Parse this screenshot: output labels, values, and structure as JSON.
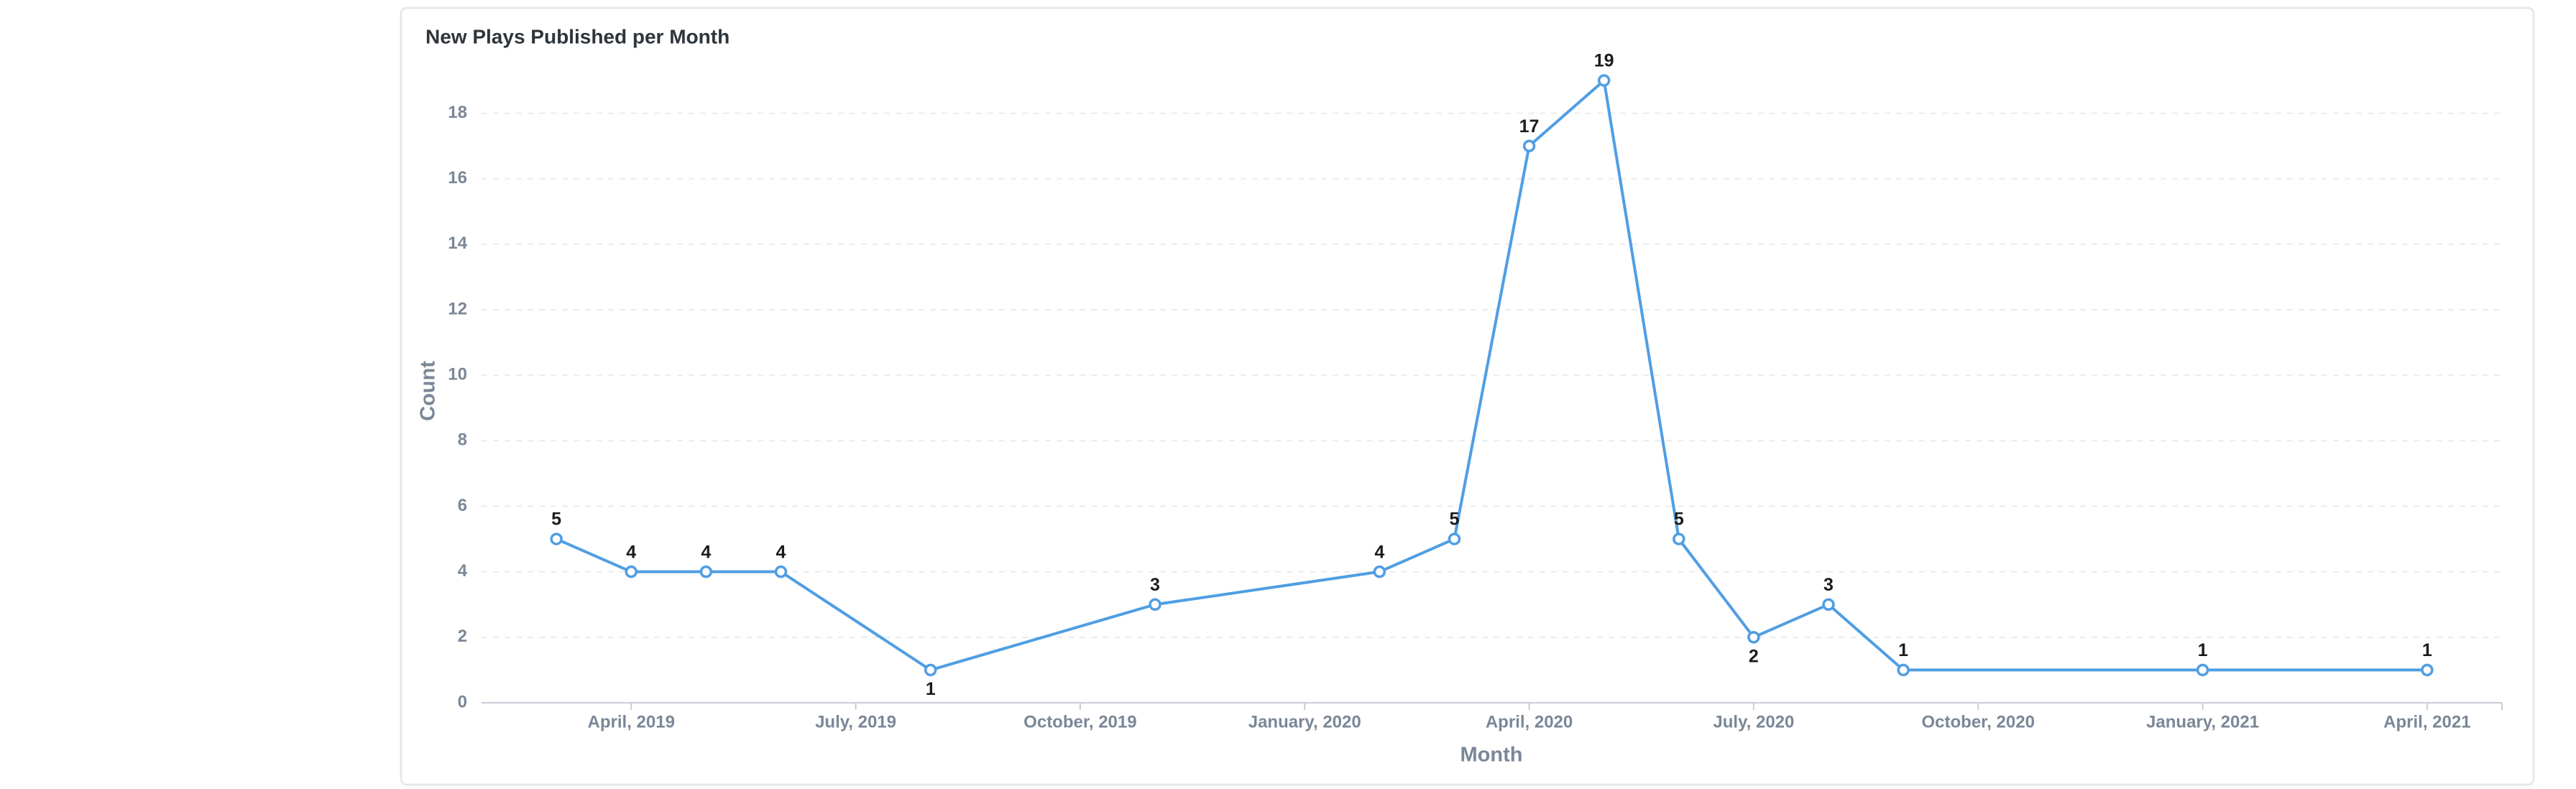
{
  "chart_data": {
    "type": "line",
    "title": "New Plays Published per Month",
    "x_label": "Month",
    "y_label": "Count",
    "x": [
      "2019-03",
      "2019-04",
      "2019-05",
      "2019-06",
      "2019-08",
      "2019-11",
      "2020-02",
      "2020-03",
      "2020-04",
      "2020-05",
      "2020-06",
      "2020-07",
      "2020-08",
      "2020-09",
      "2021-01",
      "2021-04"
    ],
    "series": [
      {
        "name": "Count",
        "color": "#509ee3",
        "values": [
          5,
          4,
          4,
          4,
          1,
          3,
          4,
          5,
          17,
          19,
          5,
          2,
          3,
          1,
          1,
          1
        ]
      }
    ],
    "xlim": [
      "2019-02",
      "2021-05"
    ],
    "xticks": [
      {
        "value": "2019-04",
        "label": "April, 2019"
      },
      {
        "value": "2019-07",
        "label": "July, 2019"
      },
      {
        "value": "2019-10",
        "label": "October, 2019"
      },
      {
        "value": "2020-01",
        "label": "January, 2020"
      },
      {
        "value": "2020-04",
        "label": "April, 2020"
      },
      {
        "value": "2020-07",
        "label": "July, 2020"
      },
      {
        "value": "2020-10",
        "label": "October, 2020"
      },
      {
        "value": "2021-01",
        "label": "January, 2021"
      },
      {
        "value": "2021-04",
        "label": "April, 2021"
      }
    ],
    "ylim": [
      0,
      19
    ],
    "yticks": [
      0,
      2,
      4,
      6,
      8,
      10,
      12,
      14,
      16,
      18
    ],
    "grid": true
  }
}
